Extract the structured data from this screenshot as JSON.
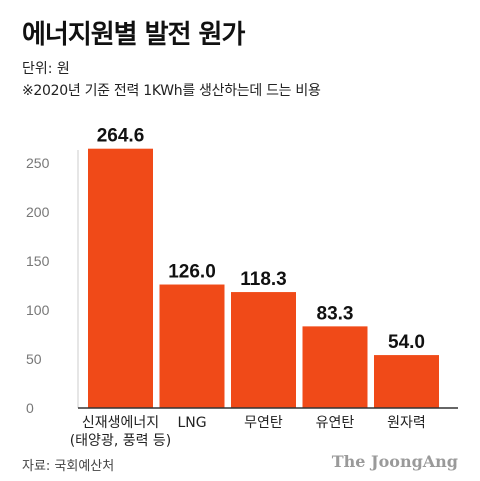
{
  "header": {
    "title": "에너지원별 발전 원가",
    "unit": "단위: 원",
    "note": "※2020년 기준 전력 1KWh를 생산하는데 드는 비용"
  },
  "footer": {
    "source": "자료: 국회예산처",
    "brand": "The JoongAng"
  },
  "colors": {
    "bar": "#f04a18",
    "grid": "#cccccc",
    "axis": "#333333",
    "tick": "#777777"
  },
  "chart_data": {
    "type": "bar",
    "categories": [
      [
        "신재생에너지",
        "(태양광, 풍력 등)"
      ],
      [
        "LNG"
      ],
      [
        "무연탄"
      ],
      [
        "유연탄"
      ],
      [
        "원자력"
      ]
    ],
    "values": [
      264.6,
      126.0,
      118.3,
      83.3,
      54.0
    ],
    "value_labels": [
      "264.6",
      "126.0",
      "118.3",
      "83.3",
      "54.0"
    ],
    "yticks": [
      0,
      50,
      100,
      150,
      200,
      250
    ],
    "ylim": [
      0,
      290
    ],
    "grid": false,
    "legend": "none"
  }
}
